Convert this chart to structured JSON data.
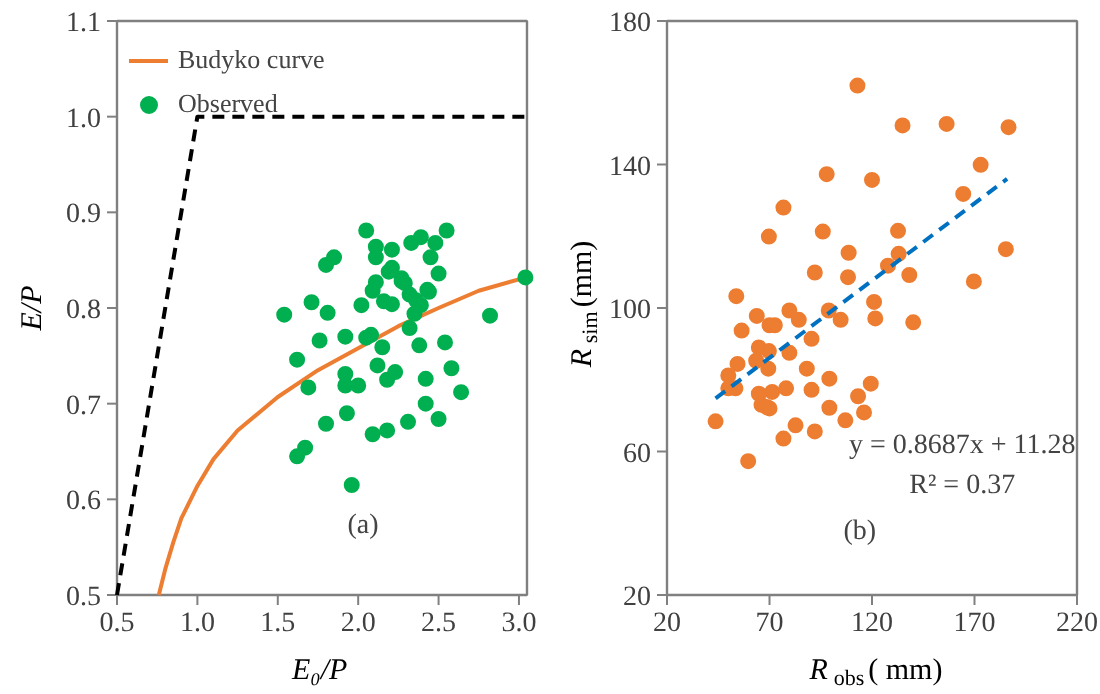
{
  "chart_data": [
    {
      "type": "scatter",
      "xlabel": "E₀/P",
      "ylabel": "E/P",
      "xlim": [
        0.5,
        3.05
      ],
      "ylim": [
        0.5,
        1.1
      ],
      "xticks": [
        {
          "value": 0.5,
          "label": "0.5"
        },
        {
          "value": 1.0,
          "label": "1.0"
        },
        {
          "value": 1.5,
          "label": "1.5"
        },
        {
          "value": 2.0,
          "label": "2.0"
        },
        {
          "value": 2.5,
          "label": "2.5"
        },
        {
          "value": 3.0,
          "label": "3.0"
        }
      ],
      "yticks": [
        {
          "value": 0.5,
          "label": "0.5"
        },
        {
          "value": 0.6,
          "label": "0.6"
        },
        {
          "value": 0.7,
          "label": "0.7"
        },
        {
          "value": 0.8,
          "label": "0.8"
        },
        {
          "value": 0.9,
          "label": "0.9"
        },
        {
          "value": 1.0,
          "label": "1.0"
        },
        {
          "value": 1.1,
          "label": "1.1"
        }
      ],
      "grid": false,
      "legend": "top left",
      "annotations": [
        "(a)"
      ],
      "series": [
        {
          "type": "line",
          "line_style": "dashed",
          "marker": "none",
          "color": "#000000",
          "x": [
            0.5,
            1.0,
            3.05
          ],
          "values": [
            0.5,
            1.0,
            1.0
          ]
        },
        {
          "type": "line",
          "name": "Budyko curve",
          "line_style": "solid",
          "marker": "none",
          "color": "#ed7d31",
          "x": [
            0.76,
            0.8,
            0.85,
            0.9,
            1.0,
            1.1,
            1.25,
            1.5,
            1.75,
            2.0,
            2.25,
            2.5,
            2.75,
            3.0,
            3.05
          ],
          "values": [
            0.5,
            0.527,
            0.555,
            0.58,
            0.614,
            0.642,
            0.672,
            0.707,
            0.735,
            0.758,
            0.781,
            0.8,
            0.818,
            0.83,
            0.833
          ]
        },
        {
          "type": "scatter",
          "name": "Observed",
          "marker": "circle",
          "color": "#00b050",
          "x": [
            1.54,
            1.62,
            1.62,
            1.67,
            1.69,
            1.71,
            1.76,
            1.8,
            1.85,
            1.81,
            1.8,
            1.92,
            1.92,
            1.92,
            1.93,
            1.96,
            2.0,
            2.02,
            2.05,
            2.05,
            2.08,
            2.09,
            2.11,
            2.11,
            2.11,
            2.09,
            2.12,
            2.15,
            2.16,
            2.18,
            2.18,
            2.19,
            2.21,
            2.21,
            2.21,
            2.23,
            2.27,
            2.27,
            2.29,
            2.32,
            2.32,
            2.33,
            2.31,
            2.35,
            2.36,
            2.39,
            2.38,
            2.39,
            2.42,
            2.42,
            2.43,
            2.44,
            2.45,
            2.48,
            2.55,
            2.5,
            2.5,
            2.54,
            2.58,
            2.64,
            2.82,
            3.04
          ],
          "values": [
            0.793,
            0.746,
            0.645,
            0.654,
            0.717,
            0.806,
            0.766,
            0.845,
            0.853,
            0.795,
            0.679,
            0.77,
            0.731,
            0.719,
            0.69,
            0.615,
            0.719,
            0.803,
            0.881,
            0.769,
            0.772,
            0.818,
            0.827,
            0.864,
            0.853,
            0.668,
            0.74,
            0.759,
            0.807,
            0.672,
            0.725,
            0.838,
            0.842,
            0.861,
            0.804,
            0.733,
            0.828,
            0.831,
            0.826,
            0.814,
            0.779,
            0.868,
            0.681,
            0.794,
            0.808,
            0.874,
            0.761,
            0.803,
            0.7,
            0.726,
            0.819,
            0.817,
            0.853,
            0.868,
            0.881,
            0.836,
            0.684,
            0.764,
            0.737,
            0.712,
            0.792,
            0.832
          ]
        }
      ]
    },
    {
      "type": "scatter",
      "xlabel": "R$_{obs}$( mm)",
      "ylabel": "R$_{sim}$(mm)",
      "xlim": [
        20,
        220
      ],
      "ylim": [
        20,
        180
      ],
      "xticks": [
        20,
        70,
        120,
        170,
        220
      ],
      "yticks": [
        20,
        60,
        100,
        140,
        180
      ],
      "grid": false,
      "legend": false,
      "annotations": [
        "y = 0.8687x + 11.28",
        "R² = 0.37",
        "(b)"
      ],
      "series": [
        {
          "type": "scatter",
          "marker": "circle",
          "color": "#ed7d31",
          "x": [
            43.7,
            49.9,
            49.9,
            53.4,
            53.8,
            54.4,
            56.4,
            59.6,
            63.8,
            63.5,
            64.8,
            64.8,
            66.1,
            68.7,
            69.7,
            69.7,
            69.4,
            70.0,
            72.6,
            71.3,
            70.0,
            76.8,
            78.1,
            76.8,
            79.7,
            79.7,
            82.7,
            84.3,
            88.2,
            90.5,
            90.5,
            92.1,
            92.1,
            96.0,
            97.9,
            98.9,
            99.2,
            99.2,
            104.7,
            107.0,
            108.3,
            108.6,
            112.9,
            113.2,
            116.1,
            119.4,
            120.0,
            121.0,
            121.6,
            127.8,
            132.7,
            133.0,
            134.9,
            138.2,
            140.1,
            156.4,
            164.5,
            169.7,
            173.0,
            185.3,
            186.6
          ],
          "values": [
            68.4,
            81.2,
            77.6,
            77.6,
            103.3,
            84.4,
            93.7,
            57.3,
            97.8,
            85.3,
            89.0,
            76.1,
            73.0,
            72.4,
            119.9,
            88.0,
            83.1,
            95.2,
            95.2,
            76.6,
            72.0,
            128.0,
            77.6,
            63.6,
            99.3,
            87.5,
            67.3,
            96.7,
            83.1,
            91.4,
            77.2,
            109.9,
            65.6,
            121.3,
            137.3,
            99.3,
            80.3,
            72.2,
            96.7,
            68.7,
            108.6,
            115.4,
            162.0,
            75.4,
            70.9,
            78.9,
            135.7,
            101.7,
            97.1,
            111.8,
            121.5,
            115.1,
            150.9,
            109.2,
            96.0,
            151.3,
            131.8,
            107.4,
            139.9,
            116.4,
            150.4
          ]
        },
        {
          "type": "line",
          "line_style": "dashed",
          "marker": "none",
          "color": "#0070c0",
          "x": [
            43.7,
            185.9
          ],
          "values": [
            74.8,
            136.0
          ]
        }
      ]
    }
  ]
}
